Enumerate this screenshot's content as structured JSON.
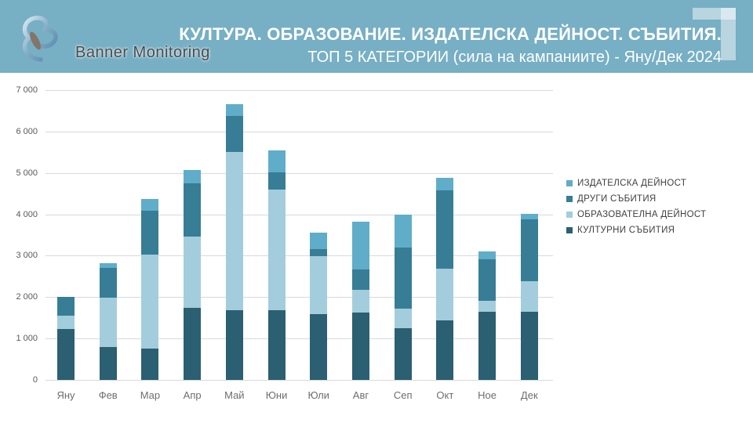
{
  "header": {
    "brand": "Banner Monitoring",
    "title": "КУЛТУРА. ОБРАЗОВАНИЕ. ИЗДАТЕЛСКА ДЕЙНОСТ. СЪБИТИЯ.",
    "subtitle": "ТОП 5 КАТЕГОРИИ (сила на кампаниите) - Яну/Дек 2024",
    "background_color": "#77afc4"
  },
  "chart_data": {
    "type": "bar",
    "stacked": true,
    "title": "ТОП 5 КАТЕГОРИИ (сила на кампаниите) - Яну/Дек 2024",
    "xlabel": "",
    "ylabel": "",
    "ylim": [
      0,
      7000
    ],
    "y_ticks": [
      0,
      1000,
      2000,
      3000,
      4000,
      5000,
      6000,
      7000
    ],
    "y_tick_labels": [
      "0",
      "1 000",
      "2 000",
      "3 000",
      "4 000",
      "5 000",
      "6 000",
      "7 000"
    ],
    "grid": "horizontal",
    "gridline_color": "#d9d9d9",
    "legend_position": "right",
    "categories": [
      "Яну",
      "Фев",
      "Мар",
      "Апр",
      "Май",
      "Юни",
      "Юли",
      "Авг",
      "Сеп",
      "Окт",
      "Ное",
      "Дек"
    ],
    "series": [
      {
        "name": "КУЛТУРНИ СЪБИТИЯ",
        "color": "#2b5f72",
        "values": [
          1230,
          790,
          755,
          1745,
          1685,
          1685,
          1595,
          1620,
          1240,
          1440,
          1650,
          1640
        ]
      },
      {
        "name": "ОБРАЗОВАТЕЛНА ДЕЙНОСТ",
        "color": "#a3cddc",
        "values": [
          320,
          1200,
          2270,
          1720,
          3820,
          2920,
          1400,
          565,
          490,
          1240,
          270,
          740
        ]
      },
      {
        "name": "ДРУГИ СЪБИТИЯ",
        "color": "#377d96",
        "values": [
          450,
          715,
          1055,
          1275,
          875,
          410,
          160,
          480,
          1470,
          1905,
          990,
          1490
        ]
      },
      {
        "name": "ИЗДАТЕЛСКА ДЕЙНОСТ",
        "color": "#60adca",
        "values": [
          0,
          110,
          300,
          335,
          285,
          525,
          410,
          1150,
          790,
          290,
          190,
          150
        ]
      }
    ],
    "legend": [
      {
        "label": "ИЗДАТЕЛСКА ДЕЙНОСТ",
        "color": "#60adca"
      },
      {
        "label": "ДРУГИ СЪБИТИЯ",
        "color": "#377d96"
      },
      {
        "label": "ОБРАЗОВАТЕЛНА ДЕЙНОСТ",
        "color": "#a3cddc"
      },
      {
        "label": "КУЛТУРНИ СЪБИТИЯ",
        "color": "#2b5f72"
      }
    ]
  }
}
